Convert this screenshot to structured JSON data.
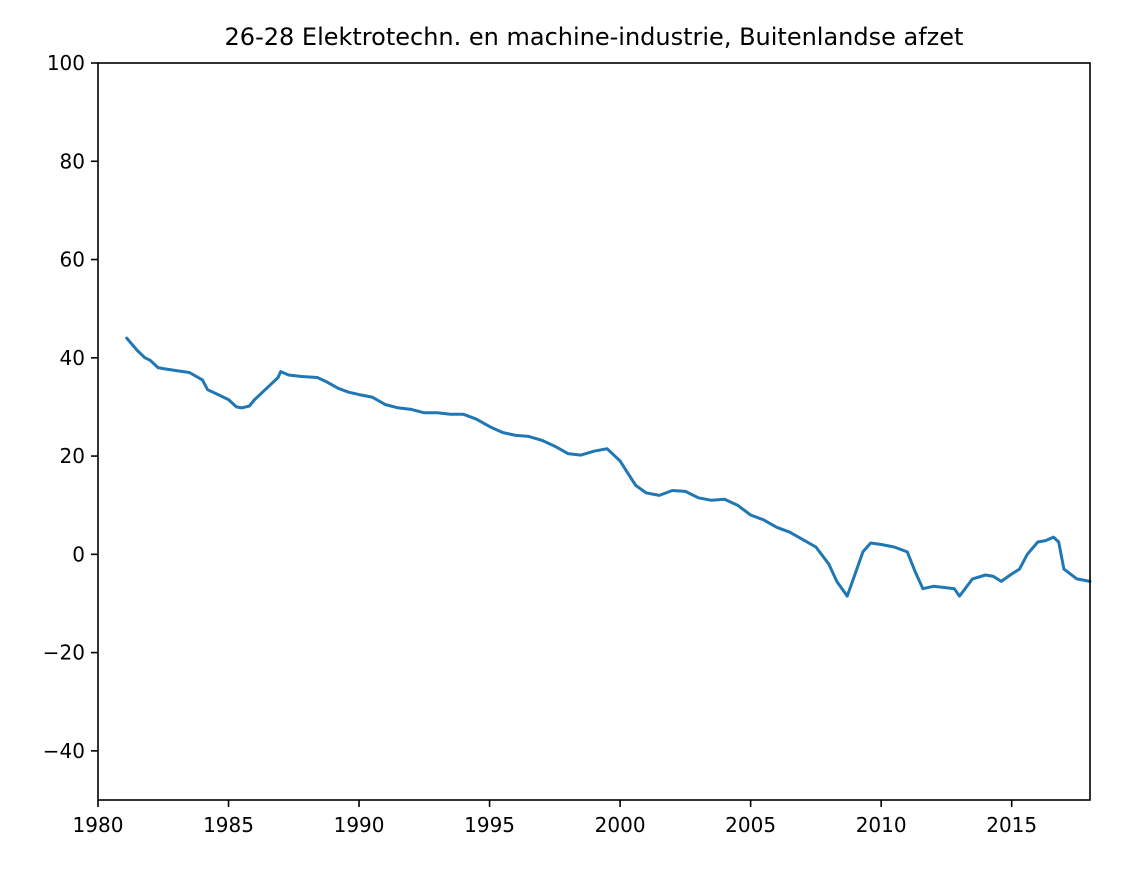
{
  "chart_data": {
    "type": "line",
    "title": "26-28 Elektrotechn. en machine-industrie, Buitenlandse afzet",
    "xlabel": "",
    "ylabel": "",
    "xlim": [
      1980,
      2018
    ],
    "ylim": [
      -50,
      100
    ],
    "xticks": [
      1980,
      1985,
      1990,
      1995,
      2000,
      2005,
      2010,
      2015
    ],
    "xtick_labels": [
      "1980",
      "1985",
      "1990",
      "1995",
      "2000",
      "2005",
      "2010",
      "2015"
    ],
    "yticks": [
      -40,
      -20,
      0,
      20,
      40,
      60,
      80,
      100
    ],
    "ytick_labels": [
      "−40",
      "−20",
      "0",
      "20",
      "40",
      "60",
      "80",
      "100"
    ],
    "grid": false,
    "series": [
      {
        "color": "#1f77b4",
        "x": [
          1981.1,
          1981.5,
          1981.8,
          1982.0,
          1982.3,
          1982.5,
          1983.0,
          1983.5,
          1984.0,
          1984.2,
          1984.6,
          1985.0,
          1985.3,
          1985.5,
          1985.8,
          1986.0,
          1986.5,
          1986.9,
          1987.0,
          1987.3,
          1987.8,
          1988.4,
          1988.8,
          1989.2,
          1989.6,
          1990.0,
          1990.5,
          1991.0,
          1991.5,
          1992.0,
          1992.5,
          1993.0,
          1993.5,
          1994.0,
          1994.5,
          1995.0,
          1995.5,
          1996.0,
          1996.5,
          1997.0,
          1997.5,
          1998.0,
          1998.5,
          1999.0,
          1999.5,
          2000.0,
          2000.3,
          2000.6,
          2001.0,
          2001.5,
          2002.0,
          2002.5,
          2003.0,
          2003.5,
          2004.0,
          2004.5,
          2005.0,
          2005.5,
          2006.0,
          2006.5,
          2007.0,
          2007.5,
          2008.0,
          2008.3,
          2008.5,
          2008.7,
          2009.0,
          2009.3,
          2009.6,
          2010.0,
          2010.5,
          2011.0,
          2011.3,
          2011.6,
          2012.0,
          2012.5,
          2012.8,
          2013.0,
          2013.5,
          2014.0,
          2014.3,
          2014.6,
          2015.0,
          2015.3,
          2015.6,
          2016.0,
          2016.3,
          2016.6,
          2016.8,
          2017.0,
          2017.5,
          2018.0
        ],
        "y": [
          44.0,
          41.5,
          40.0,
          39.5,
          38.0,
          37.8,
          37.4,
          37.0,
          35.5,
          33.5,
          32.5,
          31.5,
          30.0,
          29.8,
          30.2,
          31.5,
          34.0,
          36.0,
          37.2,
          36.5,
          36.2,
          36.0,
          35.0,
          33.8,
          33.0,
          32.5,
          32.0,
          30.5,
          29.8,
          29.5,
          28.8,
          28.8,
          28.5,
          28.5,
          27.5,
          26.0,
          24.8,
          24.2,
          24.0,
          23.2,
          22.0,
          20.5,
          20.2,
          21.0,
          21.5,
          19.0,
          16.5,
          14.0,
          12.5,
          12.0,
          13.0,
          12.8,
          11.5,
          11.0,
          11.2,
          10.0,
          8.0,
          7.0,
          5.5,
          4.5,
          3.0,
          1.5,
          -2.0,
          -5.5,
          -7.0,
          -8.5,
          -4.0,
          0.5,
          2.3,
          2.0,
          1.5,
          0.5,
          -3.5,
          -7.0,
          -6.5,
          -6.8,
          -7.0,
          -8.5,
          -5.0,
          -4.2,
          -4.5,
          -5.5,
          -4.0,
          -3.0,
          0.0,
          2.5,
          2.8,
          3.5,
          2.5,
          -3.0,
          -5.0,
          -5.5
        ]
      }
    ]
  }
}
